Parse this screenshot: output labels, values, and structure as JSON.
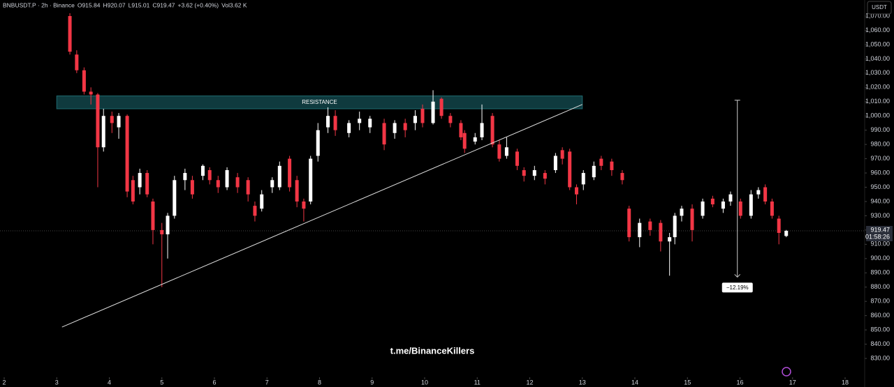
{
  "chart_data": {
    "type": "candlestick",
    "header": [
      "BNBUSDT.P · 2h · Binance",
      "O915.84",
      "H920.07",
      "L915.01",
      "C919.47",
      "+3.62 (+0.40%)",
      "Vol3.62 K"
    ],
    "currency": "USDT",
    "watermark": "t.me/BinanceKillers",
    "up_color": "#ffffff",
    "down_color": "#f23645",
    "xlim": [
      2,
      18
    ],
    "xticks": [
      2,
      3,
      4,
      5,
      6,
      7,
      8,
      9,
      10,
      11,
      12,
      13,
      14,
      15,
      16,
      17,
      18
    ],
    "ylim": [
      825,
      1072
    ],
    "yticks": [
      {
        "value": 830,
        "label": "830.00"
      },
      {
        "value": 840,
        "label": "840.00"
      },
      {
        "value": 850,
        "label": "850.00"
      },
      {
        "value": 860,
        "label": "860.00"
      },
      {
        "value": 870,
        "label": "870.00"
      },
      {
        "value": 880,
        "label": "880.00"
      },
      {
        "value": 890,
        "label": "890.00"
      },
      {
        "value": 900,
        "label": "900.00"
      },
      {
        "value": 910,
        "label": "910.00"
      },
      {
        "value": 920,
        "label": "920.00"
      },
      {
        "value": 930,
        "label": "930.00"
      },
      {
        "value": 940,
        "label": "940.00"
      },
      {
        "value": 950,
        "label": "950.00"
      },
      {
        "value": 960,
        "label": "960.00"
      },
      {
        "value": 970,
        "label": "970.00"
      },
      {
        "value": 980,
        "label": "980.00"
      },
      {
        "value": 990,
        "label": "990.00"
      },
      {
        "value": 1000,
        "label": "1,000.00"
      },
      {
        "value": 1010,
        "label": "1,010.00"
      },
      {
        "value": 1020,
        "label": "1,020.00"
      },
      {
        "value": 1030,
        "label": "1,030.00"
      },
      {
        "value": 1040,
        "label": "1,040.00"
      },
      {
        "value": 1050,
        "label": "1,050.00"
      },
      {
        "value": 1060,
        "label": "1,060.00"
      },
      {
        "value": 1070,
        "label": "1,070.00"
      }
    ],
    "candles": [
      [
        3.25,
        1070,
        1072,
        1043,
        1045
      ],
      [
        3.38,
        1043,
        1046,
        1030,
        1032
      ],
      [
        3.52,
        1032,
        1034,
        1015,
        1017
      ],
      [
        3.65,
        1017,
        1020,
        1008,
        1015
      ],
      [
        3.78,
        1015,
        1016,
        950,
        978
      ],
      [
        3.89,
        978,
        1005,
        975,
        1000
      ],
      [
        4.05,
        1000,
        1003,
        988,
        995
      ],
      [
        4.18,
        992,
        1002,
        984,
        1000
      ],
      [
        4.34,
        1000,
        1001,
        943,
        947
      ],
      [
        4.45,
        955,
        958,
        938,
        940
      ],
      [
        4.58,
        950,
        963,
        945,
        960
      ],
      [
        4.72,
        960,
        962,
        943,
        945
      ],
      [
        4.83,
        940,
        942,
        910,
        920
      ],
      [
        5.0,
        920,
        925,
        880,
        917
      ],
      [
        5.11,
        917,
        932,
        900,
        930
      ],
      [
        5.24,
        930,
        958,
        928,
        955
      ],
      [
        5.44,
        955,
        963,
        948,
        960
      ],
      [
        5.58,
        955,
        958,
        942,
        945
      ],
      [
        5.78,
        958,
        966,
        955,
        965
      ],
      [
        5.91,
        962,
        964,
        952,
        955
      ],
      [
        6.07,
        955,
        958,
        946,
        950
      ],
      [
        6.24,
        950,
        964,
        948,
        962
      ],
      [
        6.44,
        957,
        960,
        946,
        950
      ],
      [
        6.64,
        955,
        957,
        940,
        945
      ],
      [
        6.77,
        937,
        940,
        926,
        930
      ],
      [
        6.9,
        935,
        948,
        933,
        945
      ],
      [
        7.1,
        950,
        957,
        946,
        955
      ],
      [
        7.24,
        950,
        968,
        948,
        965
      ],
      [
        7.43,
        970,
        972,
        947,
        950
      ],
      [
        7.57,
        955,
        958,
        936,
        940
      ],
      [
        7.7,
        940,
        942,
        926,
        935
      ],
      [
        7.83,
        940,
        972,
        938,
        970
      ],
      [
        7.97,
        972,
        995,
        968,
        990
      ],
      [
        8.16,
        992,
        1006,
        988,
        1000
      ],
      [
        8.3,
        1000,
        1004,
        986,
        990
      ],
      [
        8.56,
        988,
        997,
        985,
        995
      ],
      [
        8.76,
        995,
        1003,
        990,
        998
      ],
      [
        8.96,
        992,
        1000,
        988,
        998
      ],
      [
        9.23,
        995,
        998,
        976,
        980
      ],
      [
        9.43,
        988,
        997,
        984,
        995
      ],
      [
        9.63,
        995,
        998,
        985,
        990
      ],
      [
        9.82,
        995,
        1004,
        990,
        1000
      ],
      [
        9.96,
        1005,
        1008,
        992,
        995
      ],
      [
        10.16,
        995,
        1018,
        994,
        1010
      ],
      [
        10.32,
        1012,
        1013,
        998,
        1000
      ],
      [
        10.49,
        1000,
        1002,
        992,
        995
      ],
      [
        10.69,
        995,
        997,
        983,
        985
      ],
      [
        10.76,
        988,
        990,
        974,
        977
      ],
      [
        10.96,
        982,
        988,
        980,
        985
      ],
      [
        11.09,
        985,
        1008,
        983,
        995
      ],
      [
        11.29,
        1000,
        1002,
        978,
        980
      ],
      [
        11.42,
        980,
        983,
        968,
        970
      ],
      [
        11.56,
        972,
        985,
        970,
        978
      ],
      [
        11.76,
        975,
        977,
        962,
        965
      ],
      [
        11.89,
        962,
        964,
        954,
        958
      ],
      [
        12.09,
        958,
        965,
        955,
        962
      ],
      [
        12.29,
        960,
        962,
        952,
        956
      ],
      [
        12.49,
        962,
        974,
        960,
        972
      ],
      [
        12.62,
        976,
        978,
        966,
        970
      ],
      [
        12.76,
        975,
        977,
        948,
        950
      ],
      [
        12.89,
        950,
        952,
        938,
        945
      ],
      [
        13.02,
        952,
        962,
        948,
        960
      ],
      [
        13.22,
        957,
        968,
        955,
        965
      ],
      [
        13.36,
        970,
        972,
        962,
        965
      ],
      [
        13.56,
        968,
        970,
        958,
        962
      ],
      [
        13.76,
        960,
        962,
        952,
        955
      ],
      [
        13.89,
        935,
        937,
        912,
        915
      ],
      [
        14.09,
        915,
        928,
        908,
        925
      ],
      [
        14.29,
        926,
        928,
        916,
        920
      ],
      [
        14.49,
        925,
        927,
        905,
        912
      ],
      [
        14.66,
        912,
        918,
        888,
        915
      ],
      [
        14.76,
        915,
        932,
        910,
        930
      ],
      [
        14.89,
        930,
        937,
        926,
        935
      ],
      [
        15.09,
        935,
        938,
        912,
        920
      ],
      [
        15.29,
        930,
        942,
        928,
        940
      ],
      [
        15.48,
        942,
        944,
        936,
        938
      ],
      [
        15.68,
        935,
        942,
        932,
        940
      ],
      [
        15.82,
        940,
        947,
        937,
        945
      ],
      [
        16.01,
        940,
        942,
        928,
        930
      ],
      [
        16.21,
        930,
        948,
        928,
        945
      ],
      [
        16.35,
        945,
        950,
        942,
        948
      ],
      [
        16.48,
        950,
        952,
        938,
        940
      ],
      [
        16.61,
        940,
        942,
        928,
        930
      ],
      [
        16.74,
        928,
        930,
        910,
        918
      ],
      [
        16.88,
        915.84,
        920.07,
        915.01,
        919.47
      ]
    ],
    "resistance": {
      "label": "RESISTANCE",
      "x": [
        3.0,
        13.0
      ],
      "y": [
        1005,
        1014
      ]
    },
    "trendline": {
      "x": [
        3.1,
        13.0
      ],
      "y": [
        852,
        1008
      ]
    },
    "measure": {
      "x": 15.95,
      "y": [
        1011,
        887
      ],
      "label": "−12.19%"
    },
    "last_price": {
      "value": 919.47,
      "label": "919.47",
      "timer": "01:58:26"
    }
  }
}
